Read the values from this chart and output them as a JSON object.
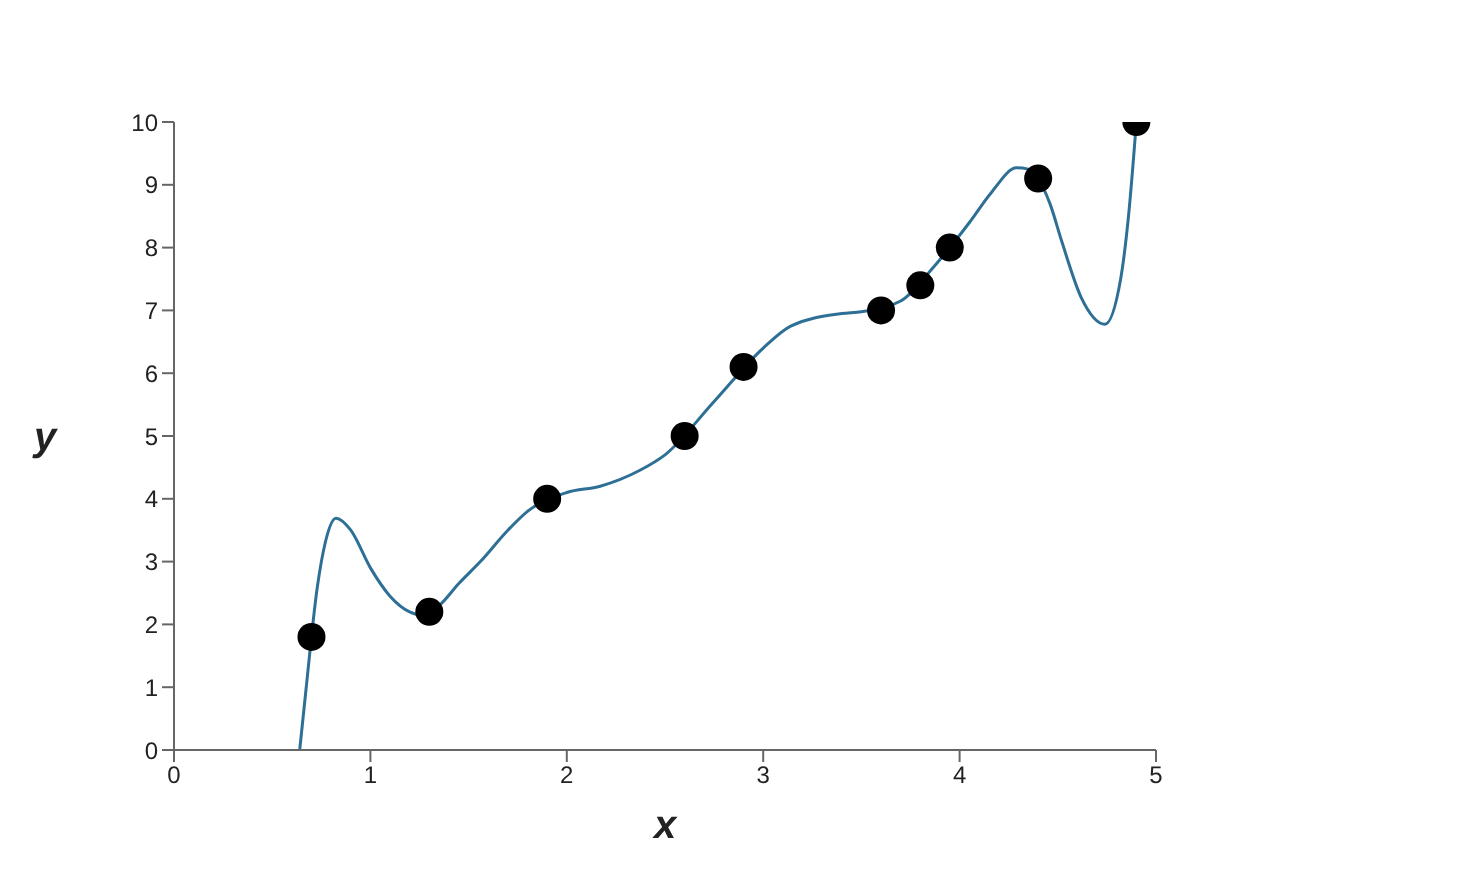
{
  "chart_data": {
    "type": "scatter",
    "xlabel": "x",
    "ylabel": "y",
    "xlim": [
      0,
      5
    ],
    "ylim": [
      0,
      10
    ],
    "xticks": [
      0,
      1,
      2,
      3,
      4,
      5
    ],
    "yticks": [
      0,
      1,
      2,
      3,
      4,
      5,
      6,
      7,
      8,
      9,
      10
    ],
    "grid": false,
    "legend": false,
    "marker": "circle",
    "series": [
      {
        "type": "line",
        "color": "#2e6f96",
        "marker": "none",
        "line_style": "solid",
        "x": [
          0.64,
          0.67,
          0.73,
          0.77,
          0.825,
          0.9,
          1.0,
          1.1,
          1.2,
          1.26,
          1.35,
          1.45,
          1.56,
          1.7,
          1.8,
          2.0,
          2.17,
          2.37,
          2.5,
          2.75,
          3.0,
          3.14,
          3.4,
          3.5,
          3.7,
          3.87,
          4.05,
          4.16,
          4.29,
          4.35,
          4.46,
          4.52,
          4.62,
          4.74,
          4.82,
          4.86,
          4.9
        ],
        "values": [
          0,
          0.9,
          2.6,
          3.3,
          3.69,
          3.5,
          2.9,
          2.45,
          2.2,
          2.15,
          2.3,
          2.65,
          3.0,
          3.5,
          3.8,
          4.1,
          4.2,
          4.45,
          4.7,
          5.55,
          6.4,
          6.75,
          6.95,
          6.98,
          7.15,
          7.7,
          8.4,
          8.87,
          9.27,
          9.25,
          8.7,
          8.1,
          7.2,
          6.78,
          7.5,
          8.5,
          10
        ]
      },
      {
        "color": "#000000",
        "x": [
          0.7,
          1.3,
          1.9,
          2.6,
          2.9,
          3.6,
          3.8,
          3.95,
          4.4,
          4.9
        ],
        "values": [
          1.8,
          2.2,
          4.0,
          5.0,
          6.1,
          7.0,
          7.4,
          8.0,
          9.1,
          10
        ]
      }
    ]
  }
}
